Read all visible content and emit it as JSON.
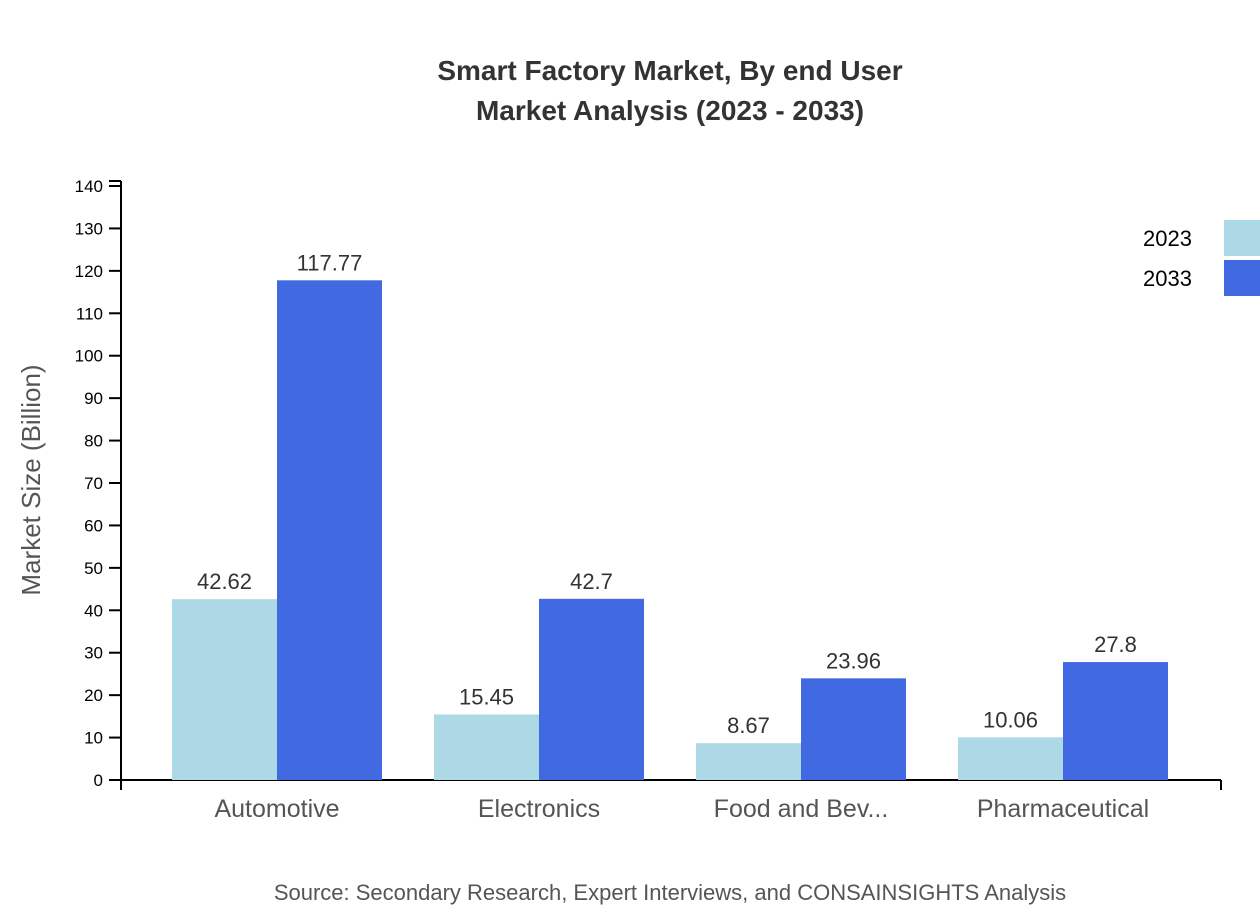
{
  "chart_data": {
    "type": "bar",
    "title": "Smart Factory Market, By end User",
    "subtitle": "Market Analysis (2023 - 2033)",
    "xlabel": "",
    "ylabel": "Market Size (Billion)",
    "ylim": [
      0,
      140
    ],
    "yticks": [
      0,
      10,
      20,
      30,
      40,
      50,
      60,
      70,
      80,
      90,
      100,
      110,
      120,
      130,
      140
    ],
    "categories": [
      "Automotive",
      "Electronics",
      "Food and Bev...",
      "Pharmaceutical"
    ],
    "series": [
      {
        "name": "2023",
        "color": "#add8e6",
        "values": [
          42.62,
          15.45,
          8.67,
          10.06
        ]
      },
      {
        "name": "2033",
        "color": "#4169e1",
        "values": [
          117.77,
          42.7,
          23.96,
          27.8
        ]
      }
    ],
    "grid": false,
    "legend": "top-right",
    "source": "Source: Secondary Research, Expert Interviews, and CONSAINSIGHTS Analysis"
  }
}
